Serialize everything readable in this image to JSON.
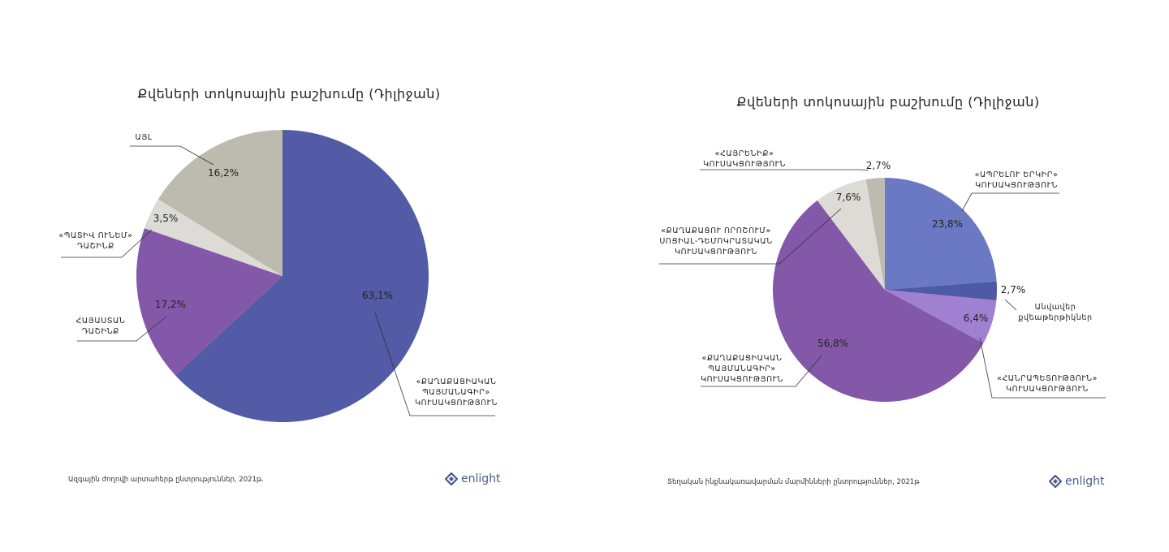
{
  "chart_data": [
    {
      "type": "pie",
      "title": "Քվեների տոկոսային բաշխումը (Դիլիջան)",
      "source": "Ազգային ժողովի արտահերթ ընտրություններ, 2021թ.",
      "slices": [
        {
          "label": [
            "«ՔԱՂԱՔԱՑԻԱԿԱՆ",
            "ՊԱՅՄԱՆԱԳԻՐ»",
            "ԿՈՒՍԱԿՑՈՒԹՅՈՒՆ"
          ],
          "value": 63.1,
          "display": "63,1%",
          "color": "#535aa6"
        },
        {
          "label": [
            "ՀԱՅԱՍՏԱՆ",
            "ԴԱՇԻՆՔ"
          ],
          "value": 17.2,
          "display": "17,2%",
          "color": "#8458a8"
        },
        {
          "label": [
            "«ՊԱՏԻՎ ՈՒՆԵՄ»",
            "ԴԱՇԻՆՔ"
          ],
          "value": 3.5,
          "display": "3,5%",
          "color": "#dcdbd6"
        },
        {
          "label": [
            "ԱՅԼ"
          ],
          "value": 16.2,
          "display": "16,2%",
          "color": "#bdbbb0"
        }
      ]
    },
    {
      "type": "pie",
      "title": "Քվեների տոկոսային բաշխումը (Դիլիջան)",
      "source": "Տեղական ինքնակառավարման մարմինների ընտրություններ, 2021թ",
      "slices": [
        {
          "label": [
            "«ԱՊՐԵԼՈՒ ԵՐԿԻՐ»",
            "ԿՈՒՍԱԿՑՈՒԹՅՈՒՆ"
          ],
          "value": 23.8,
          "display": "23,8%",
          "color": "#6b78c4"
        },
        {
          "label": [
            "Անվավեր",
            "քվեաթերթիկներ"
          ],
          "value": 2.7,
          "display": "2,7%",
          "color": "#4d5aa6"
        },
        {
          "label": [
            "«ՀԱՆՐԱՊԵՏՈՒԹՅՈՒՆ»",
            "ԿՈՒՍԱԿՑՈՒԹՅՈՒՆ"
          ],
          "value": 6.4,
          "display": "6,4%",
          "color": "#a080d0"
        },
        {
          "label": [
            "«ՔԱՂԱՔԱՑԻԱԿԱՆ",
            "ՊԱՅՄԱՆԱԳԻՐ»",
            "ԿՈՒՍԱԿՑՈՒԹՅՈՒՆ"
          ],
          "value": 56.8,
          "display": "56,8%",
          "color": "#8458a8"
        },
        {
          "label": [
            "«ՔԱՂԱՔԱՑՈՒ ՈՐՈՇՈՒՄ»",
            "ՍՈՑԻԱԼ-ԴԵՄՈԿՐԱՏԱԿԱՆ",
            "ԿՈՒՍԱԿՑՈՒԹՅՈՒՆ"
          ],
          "value": 7.6,
          "display": "7,6%",
          "color": "#dcdbd6"
        },
        {
          "label": [
            "«ՀԱՅՐԵՆԻՔ»",
            "ԿՈՒՍԱԿՑՈՒԹՅՈՒՆ"
          ],
          "value": 2.7,
          "display": "2,7%",
          "color": "#bdbbb0"
        }
      ]
    }
  ],
  "logo": {
    "text": "enlight"
  }
}
